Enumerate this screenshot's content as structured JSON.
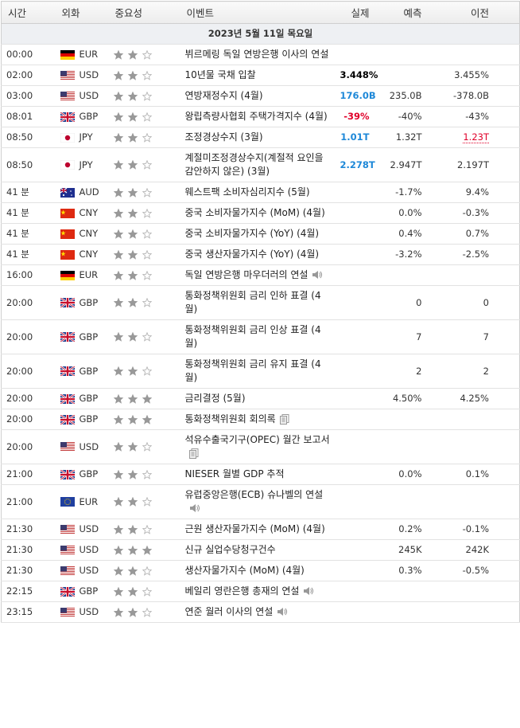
{
  "header": {
    "time": "시간",
    "currency": "외화",
    "importance": "중요성",
    "event": "이벤트",
    "actual": "실제",
    "forecast": "예측",
    "previous": "이전"
  },
  "date": "2023년 5월 11일 목요일",
  "rows": [
    {
      "time": "00:00",
      "currency": "EUR",
      "flag": "de",
      "importance": 2,
      "event": "뷔르메링 독일 연방은행 이사의 연설"
    },
    {
      "time": "02:00",
      "currency": "USD",
      "flag": "us",
      "importance": 2,
      "event": "10년물 국채 입찰",
      "actual": "3.448%",
      "actual_color": "#000000",
      "previous": "3.455%"
    },
    {
      "time": "03:00",
      "currency": "USD",
      "flag": "us",
      "importance": 2,
      "event": "연방재정수지 (4월)",
      "actual": "176.0B",
      "actual_color": "#1e88d8",
      "forecast": "235.0B",
      "previous": "-378.0B"
    },
    {
      "time": "08:01",
      "currency": "GBP",
      "flag": "gb",
      "importance": 2,
      "event": "왕립측량사협회 주택가격지수 (4월)",
      "actual": "-39%",
      "actual_color": "#e0002a",
      "forecast": "-40%",
      "previous": "-43%"
    },
    {
      "time": "08:50",
      "currency": "JPY",
      "flag": "jp",
      "importance": 2,
      "event": "조정경상수지 (3월)",
      "actual": "1.01T",
      "actual_color": "#1e88d8",
      "forecast": "1.32T",
      "previous": "1.23T",
      "previous_color": "#e0002a"
    },
    {
      "time": "08:50",
      "currency": "JPY",
      "flag": "jp",
      "importance": 2,
      "event": "계절미조정경상수지(계절적 요인을 감안하지 않은) (3월)",
      "actual": "2.278T",
      "actual_color": "#1e88d8",
      "forecast": "2.947T",
      "previous": "2.197T"
    },
    {
      "time": "41 분",
      "currency": "AUD",
      "flag": "au",
      "importance": 2,
      "event": "웨스트팩 소비자심리지수 (5월)",
      "forecast": "-1.7%",
      "previous": "9.4%"
    },
    {
      "time": "41 분",
      "currency": "CNY",
      "flag": "cn",
      "importance": 2,
      "event": "중국 소비자물가지수 (MoM) (4월)",
      "forecast": "0.0%",
      "previous": "-0.3%"
    },
    {
      "time": "41 분",
      "currency": "CNY",
      "flag": "cn",
      "importance": 2,
      "event": "중국 소비자물가지수 (YoY) (4월)",
      "forecast": "0.4%",
      "previous": "0.7%"
    },
    {
      "time": "41 분",
      "currency": "CNY",
      "flag": "cn",
      "importance": 2,
      "event": "중국 생산자물가지수 (YoY) (4월)",
      "forecast": "-3.2%",
      "previous": "-2.5%"
    },
    {
      "time": "16:00",
      "currency": "EUR",
      "flag": "de",
      "importance": 2,
      "event": "독일 연방은행 마우더러의 연설",
      "icon": "speaker"
    },
    {
      "time": "20:00",
      "currency": "GBP",
      "flag": "gb",
      "importance": 2,
      "event": "통화정책위원회 금리 인하 표결 (4월)",
      "forecast": "0",
      "previous": "0"
    },
    {
      "time": "20:00",
      "currency": "GBP",
      "flag": "gb",
      "importance": 2,
      "event": "통화정책위원회 금리 인상 표결 (4월)",
      "forecast": "7",
      "previous": "7"
    },
    {
      "time": "20:00",
      "currency": "GBP",
      "flag": "gb",
      "importance": 2,
      "event": "통화정책위원회 금리 유지 표결 (4월)",
      "forecast": "2",
      "previous": "2"
    },
    {
      "time": "20:00",
      "currency": "GBP",
      "flag": "gb",
      "importance": 3,
      "event": "금리결정 (5월)",
      "forecast": "4.50%",
      "previous": "4.25%"
    },
    {
      "time": "20:00",
      "currency": "GBP",
      "flag": "gb",
      "importance": 3,
      "event": "통화정책위원회 회의록",
      "icon": "doc"
    },
    {
      "time": "20:00",
      "currency": "USD",
      "flag": "us",
      "importance": 2,
      "event": "석유수출국기구(OPEC) 월간 보고서",
      "icon": "doc"
    },
    {
      "time": "21:00",
      "currency": "GBP",
      "flag": "gb",
      "importance": 2,
      "event": "NIESER 월별 GDP 추적",
      "forecast": "0.0%",
      "previous": "0.1%"
    },
    {
      "time": "21:00",
      "currency": "EUR",
      "flag": "eu",
      "importance": 2,
      "event": "유럽중앙은행(ECB) 슈나벨의 연설",
      "icon": "speaker"
    },
    {
      "time": "21:30",
      "currency": "USD",
      "flag": "us",
      "importance": 2,
      "event": "근원 생산자물가지수 (MoM) (4월)",
      "forecast": "0.2%",
      "previous": "-0.1%"
    },
    {
      "time": "21:30",
      "currency": "USD",
      "flag": "us",
      "importance": 3,
      "event": "신규 실업수당청구건수",
      "forecast": "245K",
      "previous": "242K"
    },
    {
      "time": "21:30",
      "currency": "USD",
      "flag": "us",
      "importance": 2,
      "event": "생산자물가지수 (MoM) (4월)",
      "forecast": "0.3%",
      "previous": "-0.5%"
    },
    {
      "time": "22:15",
      "currency": "GBP",
      "flag": "gb",
      "importance": 2,
      "event": "베일리 영란은행 총재의 연설",
      "icon": "speaker"
    },
    {
      "time": "23:15",
      "currency": "USD",
      "flag": "us",
      "importance": 2,
      "event": "연준 월러 이사의 연설",
      "icon": "speaker"
    }
  ]
}
